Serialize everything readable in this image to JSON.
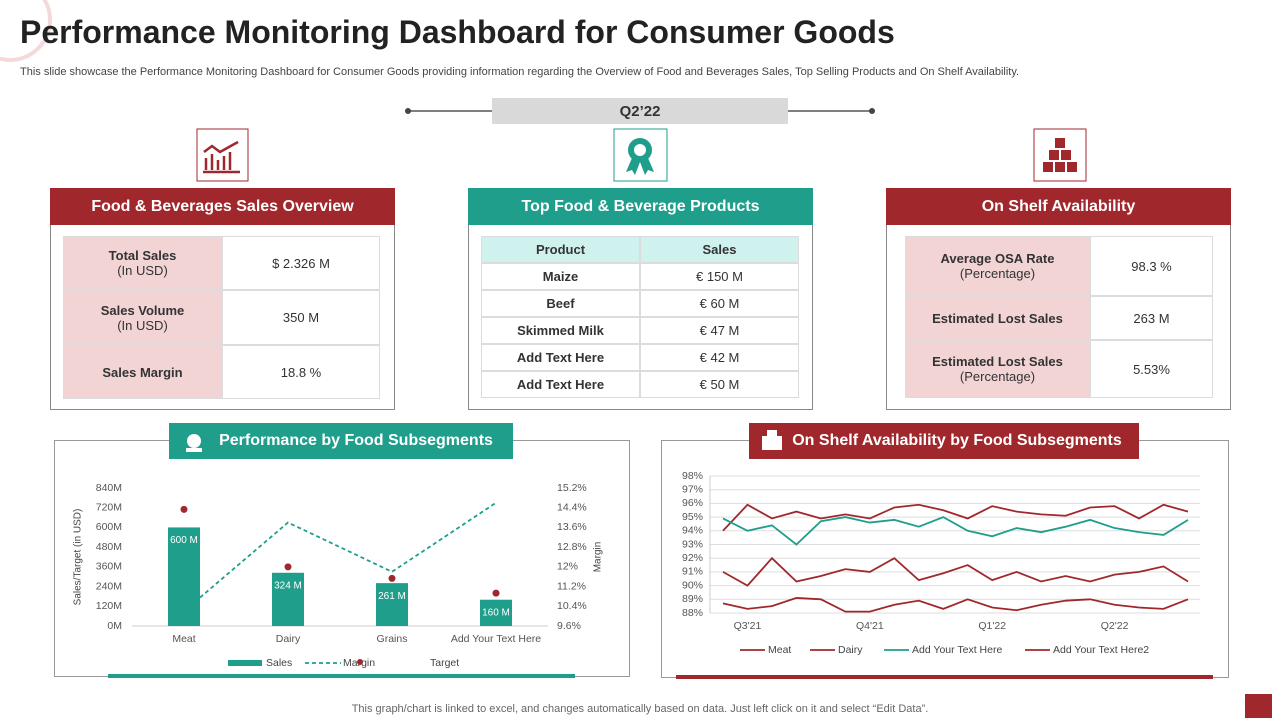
{
  "header": {
    "title": "Performance Monitoring Dashboard for Consumer Goods",
    "subtitle": "This slide showcase the Performance Monitoring Dashboard for Consumer Goods providing information regarding the Overview  of Food and Beverages Sales, Top Selling Products and On Shelf Availability."
  },
  "period": "Q2’22",
  "sales_overview": {
    "title": "Food & Beverages Sales Overview",
    "rows": [
      {
        "label": "Total Sales",
        "sublabel": "(In USD)",
        "value": "$ 2.326 M"
      },
      {
        "label": "Sales Volume",
        "sublabel": "(In USD)",
        "value": "350 M"
      },
      {
        "label": "Sales Margin",
        "value": "18.8 %"
      }
    ]
  },
  "top_products": {
    "title": "Top Food & Beverage Products",
    "columns": [
      "Product",
      "Sales"
    ],
    "rows": [
      [
        "Maize",
        "€ 150 M"
      ],
      [
        "Beef",
        "€ 60 M"
      ],
      [
        "Skimmed Milk",
        "€ 47 M"
      ],
      [
        "Add Text Here",
        "€ 42 M"
      ],
      [
        "Add Text Here",
        "€ 50 M"
      ]
    ]
  },
  "shelf_availability": {
    "title": "On Shelf Availability",
    "rows": [
      {
        "label": "Average OSA Rate",
        "sublabel": "(Percentage)",
        "value": "98.3 %"
      },
      {
        "label": "Estimated Lost Sales",
        "value": "263 M"
      },
      {
        "label": "Estimated Lost Sales",
        "sublabel": "(Percentage)",
        "value": "5.53%"
      }
    ]
  },
  "chart_data": [
    {
      "type": "bar",
      "title": "Performance by Food Subsegments",
      "y_label": "Sales/Target (in USD)",
      "y2_label": "Margin",
      "categories": [
        "Meat",
        "Dairy",
        "Grains",
        "Add Your Text Here"
      ],
      "series": [
        {
          "name": "Sales",
          "type": "bar",
          "color": "#1f9e8c",
          "values": [
            600,
            324,
            261,
            160
          ],
          "value_labels": [
            "600 M",
            "324 M",
            "261 M",
            "160 M"
          ]
        },
        {
          "name": "Margin",
          "type": "line",
          "axis": "y2",
          "dashed": true,
          "color": "#1f9e8c",
          "values": [
            10.2,
            13.8,
            11.8,
            14.6
          ]
        },
        {
          "name": "Target",
          "type": "scatter",
          "color": "#a0282d",
          "values": [
            710,
            360,
            290,
            200
          ]
        }
      ],
      "ylim": [
        0,
        840
      ],
      "yticks": [
        {
          "value": 0,
          "label": "0M"
        },
        {
          "value": 120,
          "label": "120M"
        },
        {
          "value": 240,
          "label": "240M"
        },
        {
          "value": 360,
          "label": "360M"
        },
        {
          "value": 480,
          "label": "480M"
        },
        {
          "value": 600,
          "label": "600M"
        },
        {
          "value": 720,
          "label": "720M"
        },
        {
          "value": 840,
          "label": "840M"
        }
      ],
      "y2lim": [
        9.6,
        15.2
      ],
      "y2ticks": [
        {
          "value": 9.6,
          "label": "9.6%"
        },
        {
          "value": 10.4,
          "label": "10.4%"
        },
        {
          "value": 11.2,
          "label": "11.2%"
        },
        {
          "value": 12,
          "label": "12%"
        },
        {
          "value": 12.8,
          "label": "12.8%"
        },
        {
          "value": 13.6,
          "label": "13.6%"
        },
        {
          "value": 14.4,
          "label": "14.4%"
        },
        {
          "value": 15.2,
          "label": "15.2%"
        }
      ],
      "grid": false
    },
    {
      "type": "line",
      "title": "On Shelf Availability  by Food Subsegments",
      "categories": [
        null,
        "Q3'21",
        null,
        null,
        null,
        null,
        "Q4'21",
        null,
        null,
        null,
        null,
        "Q1'22",
        null,
        null,
        null,
        null,
        "Q2'22",
        null,
        null,
        null
      ],
      "series": [
        {
          "name": "Meat",
          "color": "#a0282d",
          "values": [
            94.0,
            95.9,
            94.9,
            95.4,
            94.9,
            95.2,
            94.9,
            95.7,
            95.9,
            95.5,
            94.9,
            95.8,
            95.4,
            95.2,
            95.1,
            95.7,
            95.8,
            94.9,
            95.9,
            95.4
          ]
        },
        {
          "name": "Dairy",
          "color": "#a0282d",
          "values": [
            91.0,
            90.0,
            92.0,
            90.3,
            90.7,
            91.2,
            91.0,
            92.0,
            90.4,
            90.9,
            91.5,
            90.4,
            91.0,
            90.3,
            90.7,
            90.3,
            90.8,
            91.0,
            91.4,
            90.3
          ]
        },
        {
          "name": "Add Your Text Here",
          "color": "#1f9e8c",
          "values": [
            94.9,
            94.0,
            94.4,
            93.0,
            94.7,
            95.0,
            94.6,
            94.8,
            94.3,
            95.0,
            94.0,
            93.6,
            94.2,
            93.9,
            94.3,
            94.8,
            94.2,
            93.9,
            93.7,
            94.8
          ]
        },
        {
          "name": "Add Your Text Here2",
          "color": "#a0282d",
          "values": [
            88.7,
            88.3,
            88.5,
            89.1,
            89.0,
            88.1,
            88.1,
            88.6,
            88.9,
            88.3,
            89.0,
            88.4,
            88.2,
            88.6,
            88.9,
            89.0,
            88.6,
            88.4,
            88.3,
            89.0
          ]
        }
      ],
      "ylim": [
        88,
        98
      ],
      "yticks": [
        {
          "value": 88,
          "label": "88%"
        },
        {
          "value": 89,
          "label": "89%"
        },
        {
          "value": 90,
          "label": "90%"
        },
        {
          "value": 91,
          "label": "91%"
        },
        {
          "value": 92,
          "label": "92%"
        },
        {
          "value": 93,
          "label": "93%"
        },
        {
          "value": 94,
          "label": "94%"
        },
        {
          "value": 95,
          "label": "95%"
        },
        {
          "value": 96,
          "label": "96%"
        },
        {
          "value": 97,
          "label": "97%"
        },
        {
          "value": 98,
          "label": "98%"
        }
      ],
      "grid": true
    }
  ],
  "footer": "This graph/chart is linked to excel,  and changes automatically based on data. Just left click on it and select “Edit Data”."
}
